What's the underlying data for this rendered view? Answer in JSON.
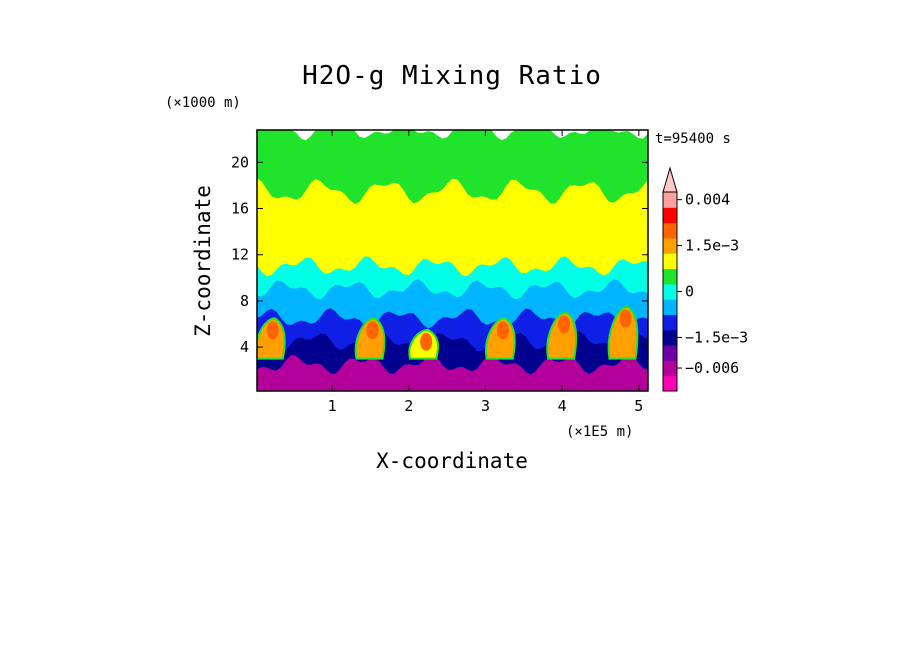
{
  "chart_data": {
    "type": "heatmap",
    "title": "H2O-g Mixing Ratio",
    "xlabel": "X-coordinate",
    "ylabel": "Z-coordinate",
    "x_unit": "(×1E5 m)",
    "y_unit": "(×1000 m)",
    "time_label": "t=95400 s",
    "xlim": [
      0.02,
      5.12
    ],
    "ylim": [
      0.2,
      22.8
    ],
    "x_ticks": [
      1,
      2,
      3,
      4,
      5
    ],
    "x_tick_labels": [
      "1",
      "2",
      "3",
      "4",
      "5"
    ],
    "y_ticks": [
      4,
      8,
      12,
      16,
      20
    ],
    "y_tick_labels": [
      "4",
      "8",
      "12",
      "16",
      "20"
    ],
    "colorbar": {
      "levels": [
        {
          "color": "#ff00b4",
          "value": -0.008
        },
        {
          "color": "#b4009b",
          "value": -0.006
        },
        {
          "color": "#6c00a6",
          "value": -0.003
        },
        {
          "color": "#00008f",
          "value": -0.0015
        },
        {
          "color": "#0f1fe6",
          "value": -0.001
        },
        {
          "color": "#00b4ff",
          "value": -0.0005
        },
        {
          "color": "#00ffe6",
          "value": 0
        },
        {
          "color": "#20e32c",
          "value": 0.0005
        },
        {
          "color": "#ffff00",
          "value": 0.001
        },
        {
          "color": "#ffa000",
          "value": 0.0015
        },
        {
          "color": "#ff6400",
          "value": 0.002
        },
        {
          "color": "#ff0000",
          "value": 0.003
        },
        {
          "color": "#ff9f9f",
          "value": 0.004
        },
        {
          "color": "#ffc8c8",
          "value": 0.006
        }
      ],
      "tick_labels": [
        "0.004",
        "1.5e−3",
        "0",
        "−1.5e−3",
        "−0.006"
      ],
      "tick_values": [
        0.004,
        0.0015,
        0,
        -0.0015,
        -0.006
      ],
      "extend": "max"
    },
    "field_description": {
      "layers": [
        {
          "z_range": [
            0.2,
            2.5
          ],
          "value": -0.006
        },
        {
          "z_range": [
            2.5,
            4.5
          ],
          "value": -0.0015
        },
        {
          "z_range": [
            4.5,
            6.5
          ],
          "value": -0.001
        },
        {
          "z_range": [
            6.5,
            9.0
          ],
          "value": -0.0005
        },
        {
          "z_range": [
            9.0,
            11.0
          ],
          "value": 0
        },
        {
          "z_range": [
            11.0,
            17.5
          ],
          "value": 0.001
        },
        {
          "z_range": [
            17.5,
            22.8
          ],
          "value": 0.0005
        }
      ],
      "plumes": [
        {
          "x": 0.2,
          "z_top": 6.5,
          "value": 0.0015
        },
        {
          "x": 1.5,
          "z_top": 6.5,
          "value": 0.0015
        },
        {
          "x": 2.2,
          "z_top": 5.5,
          "value": 0.001
        },
        {
          "x": 3.2,
          "z_top": 6.5,
          "value": 0.0015
        },
        {
          "x": 4.0,
          "z_top": 7.0,
          "value": 0.0015
        },
        {
          "x": 4.8,
          "z_top": 7.5,
          "value": 0.0015
        }
      ]
    }
  }
}
